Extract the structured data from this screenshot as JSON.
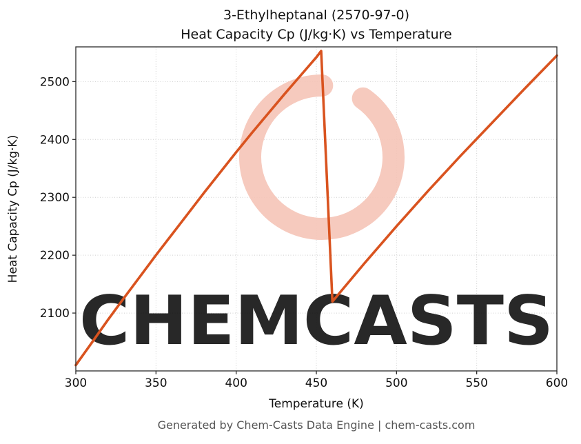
{
  "chart_data": {
    "type": "line",
    "title": "3-Ethylheptanal (2570-97-0)",
    "subtitle": "Heat Capacity Cp (J/kg·K) vs Temperature",
    "xlabel": "Temperature (K)",
    "ylabel": "Heat Capacity Cp (J/kg·K)",
    "xlim": [
      300,
      600
    ],
    "ylim": [
      2000,
      2560
    ],
    "xticks": [
      300,
      350,
      400,
      450,
      500,
      550,
      600
    ],
    "yticks": [
      2100,
      2200,
      2300,
      2400,
      2500
    ],
    "grid": true,
    "legend": false,
    "line_color": "#d9531f",
    "series": [
      {
        "name": "Heat Capacity Cp",
        "x": [
          300,
          310,
          320,
          330,
          340,
          350,
          360,
          370,
          380,
          390,
          400,
          410,
          420,
          430,
          440,
          450,
          453,
          460,
          480,
          500,
          520,
          540,
          560,
          580,
          600
        ],
        "y": [
          2010,
          2049,
          2088,
          2126,
          2163,
          2200,
          2236,
          2272,
          2308,
          2343,
          2378,
          2412,
          2445,
          2478,
          2510,
          2542,
          2553,
          2120,
          2186,
          2250,
          2312,
          2372,
          2430,
          2488,
          2545
        ]
      }
    ],
    "annotations": {
      "discontinuity": "sharp drop in Cp between T=453 K and T=460 K"
    }
  },
  "watermark": {
    "text": "CHEMCASTS",
    "color": "#f5c4b7"
  },
  "footer": {
    "text": "Generated by Chem-Casts Data Engine | chem-casts.com"
  }
}
